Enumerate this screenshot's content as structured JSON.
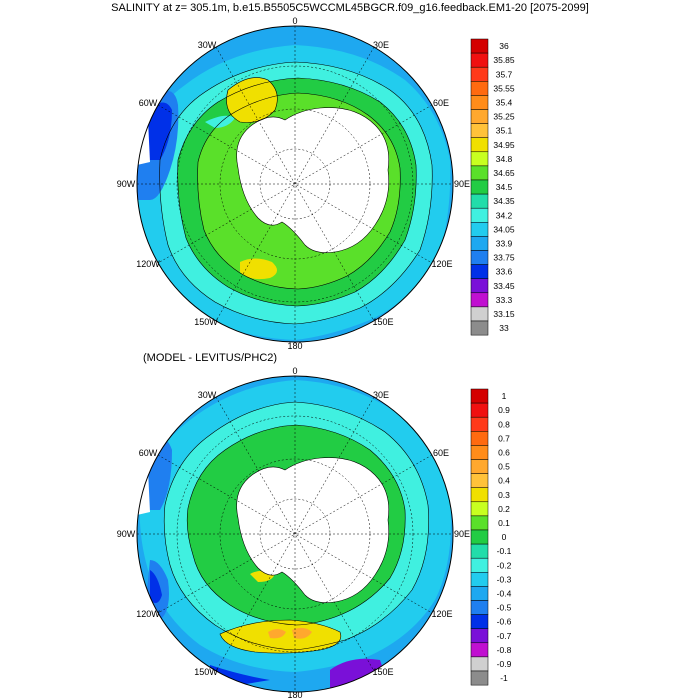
{
  "title": "SALINITY at z= 305.1m, b.e15.B5505C5WCCML45BGCR.f09_g16.feedback.EM1-20 [2075-2099]",
  "subtitle": "(MODEL - LEVITUS/PHC2)",
  "longitude_labels": [
    "0",
    "30E",
    "60E",
    "90E",
    "120E",
    "150E",
    "180",
    "150W",
    "120W",
    "90W",
    "60W",
    "30W"
  ],
  "colorbar_top": {
    "labels": [
      "36",
      "35.85",
      "35.7",
      "35.55",
      "35.4",
      "35.25",
      "35.1",
      "34.95",
      "34.8",
      "34.65",
      "34.5",
      "34.35",
      "34.2",
      "34.05",
      "33.9",
      "33.75",
      "33.6",
      "33.45",
      "33.3",
      "33.15",
      "33"
    ],
    "colors": [
      "#d40000",
      "#f01010",
      "#ff3a1a",
      "#ff6a10",
      "#ff8c1a",
      "#ffa82e",
      "#ffc23a",
      "#f0e000",
      "#c8ff20",
      "#5ae02a",
      "#22cc44",
      "#22ddaa",
      "#40f0e0",
      "#22ccee",
      "#1ea8f0",
      "#1f7ff0",
      "#0030e8",
      "#7a10d8",
      "#c010d0",
      "#d0d0d0",
      "#8c8c8c"
    ]
  },
  "colorbar_bottom": {
    "labels": [
      "1",
      "0.9",
      "0.8",
      "0.7",
      "0.6",
      "0.5",
      "0.4",
      "0.3",
      "0.2",
      "0.1",
      "0",
      "-0.1",
      "-0.2",
      "-0.3",
      "-0.4",
      "-0.5",
      "-0.6",
      "-0.7",
      "-0.8",
      "-0.9",
      "-1"
    ],
    "colors": [
      "#d40000",
      "#f01010",
      "#ff3a1a",
      "#ff6a10",
      "#ff8c1a",
      "#ffa82e",
      "#ffc23a",
      "#f0e000",
      "#c8ff20",
      "#5ae02a",
      "#22cc44",
      "#22ddaa",
      "#40f0e0",
      "#22ccee",
      "#1ea8f0",
      "#1f7ff0",
      "#0030e8",
      "#7a10d8",
      "#c010d0",
      "#d0d0d0",
      "#8c8c8c"
    ]
  }
}
